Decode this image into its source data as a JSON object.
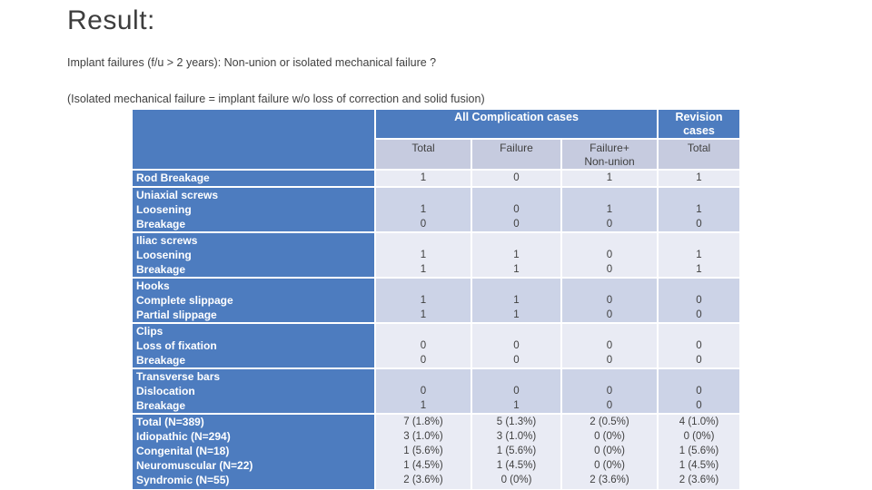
{
  "slide": {
    "title": "Result:",
    "subtitle1": "Implant failures  (f/u > 2 years): Non-union or isolated mechanical failure ?",
    "subtitle2": "(Isolated mechanical failure = implant failure w/o loss of correction and solid fusion)"
  },
  "table": {
    "header": {
      "all_complication": "All Complication cases",
      "revision": "Revision\ncases"
    },
    "subheaders": {
      "col1": "Total",
      "col2": "Failure",
      "col3": "Failure+\nNon-union",
      "col4": "Total"
    },
    "rows": [
      {
        "label": "Rod Breakage",
        "cells": [
          "1",
          "0",
          "1",
          "1"
        ]
      },
      {
        "label": "Uniaxial screws\nLoosening\nBreakage",
        "cells": [
          "\n1\n0",
          "\n0\n0",
          "\n1\n0",
          "\n1\n0"
        ]
      },
      {
        "label": "Iliac screws\nLoosening\nBreakage",
        "cells": [
          "\n1\n1",
          "\n1\n1",
          "\n0\n0",
          "\n1\n1"
        ]
      },
      {
        "label": "Hooks\nComplete slippage\nPartial slippage",
        "cells": [
          "\n1\n1",
          "\n1\n1",
          "\n0\n0",
          "\n0\n0"
        ]
      },
      {
        "label": "Clips\nLoss of fixation\nBreakage",
        "cells": [
          "\n0\n0",
          "\n0\n0",
          "\n0\n0",
          "\n0\n0"
        ]
      },
      {
        "label": "Transverse bars\nDislocation\nBreakage",
        "cells": [
          "\n0\n1",
          "\n0\n1",
          "\n0\n0",
          "\n0\n0"
        ]
      },
      {
        "label": "Total (N=389)\nIdiopathic (N=294)\nCongenital (N=18)\nNeuromuscular (N=22)\nSyndromic (N=55)",
        "cells": [
          "7 (1.8%)\n3 (1.0%)\n1 (5.6%)\n1 (4.5%)\n2 (3.6%)",
          "5 (1.3%)\n3 (1.0%)\n1 (5.6%)\n1 (4.5%)\n0 (0%)",
          "2 (0.5%)\n0 (0%)\n0 (0%)\n0 (0%)\n2 (3.6%)",
          "4 (1.0%)\n0 (0%)\n1 (5.6%)\n1 (4.5%)\n2 (3.6%)"
        ]
      }
    ]
  },
  "colors": {
    "header_blue": "#4d7cbf",
    "band_light": "#e9ebf4",
    "band_dark": "#ccd3e7",
    "subheader_bg": "#c6cbdf",
    "text_dark": "#404040",
    "header_text": "#ffffff"
  }
}
